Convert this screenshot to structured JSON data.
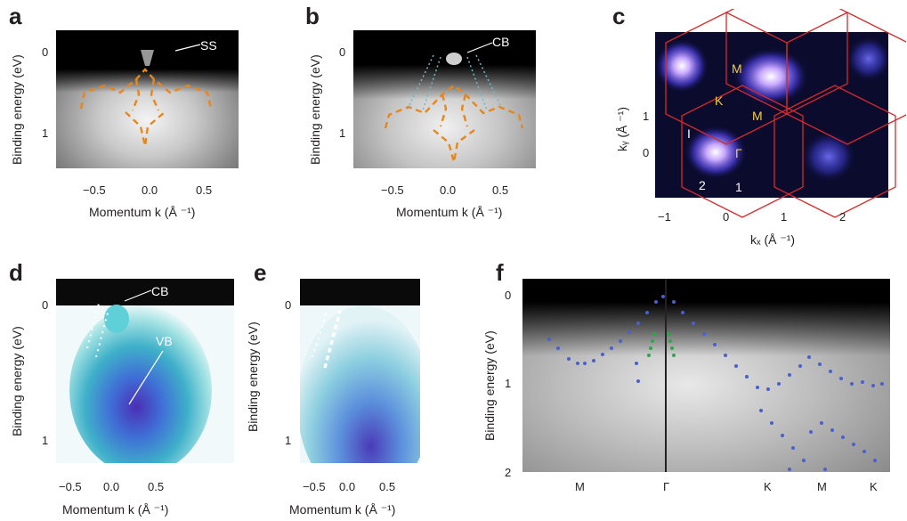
{
  "panels": {
    "a": {
      "letter": "a",
      "ylabel": "Binding energy (eV)",
      "xlabel": "Momentum k (Å ⁻¹)",
      "yticks": [
        "0",
        "1"
      ],
      "xticks": [
        "−0.5",
        "0.0",
        "0.5"
      ],
      "annotation": "SS"
    },
    "b": {
      "letter": "b",
      "ylabel": "Binding energy (eV)",
      "xlabel": "Momentum k (Å ⁻¹)",
      "yticks": [
        "0",
        "1"
      ],
      "xticks": [
        "−0.5",
        "0.0",
        "0.5"
      ],
      "annotation": "CB"
    },
    "c": {
      "letter": "c",
      "ylabel": "kᵧ (Å ⁻¹)",
      "xlabel": "kₓ (Å ⁻¹)",
      "yticks": [
        "1",
        "0"
      ],
      "xticks": [
        "−1",
        "0",
        "1",
        "2"
      ],
      "labels": {
        "M1": "M",
        "K": "K",
        "M2": "M",
        "Gamma": "Γ",
        "I": "I",
        "two": "2",
        "one": "1"
      }
    },
    "d": {
      "letter": "d",
      "ylabel": "Binding energy (eV)",
      "xlabel": "Momentum k (Å ⁻¹)",
      "yticks": [
        "0",
        "1"
      ],
      "xticks": [
        "−0.5",
        "0.0",
        "0.5"
      ],
      "annotation_cb": "CB",
      "annotation_vb": "VB"
    },
    "e": {
      "letter": "e",
      "ylabel": "Binding energy (eV)",
      "xlabel": "Momentum k (Å ⁻¹)",
      "yticks": [
        "0",
        "1"
      ],
      "xticks": [
        "−0.5",
        "0.0",
        "0.5"
      ]
    },
    "f": {
      "letter": "f",
      "ylabel": "Binding energy (eV)",
      "yticks": [
        "0",
        "1",
        "2"
      ],
      "xticks": [
        "M",
        "Γ",
        "K",
        "M",
        "K"
      ]
    }
  },
  "colors": {
    "dispersion_dash": "#e8861c",
    "bz_hexagon": "#d42a2a",
    "symmetry_label": "#f2d13a",
    "calc_dots_blue": "#4a5fd0",
    "calc_dots_green": "#2aa84a"
  }
}
